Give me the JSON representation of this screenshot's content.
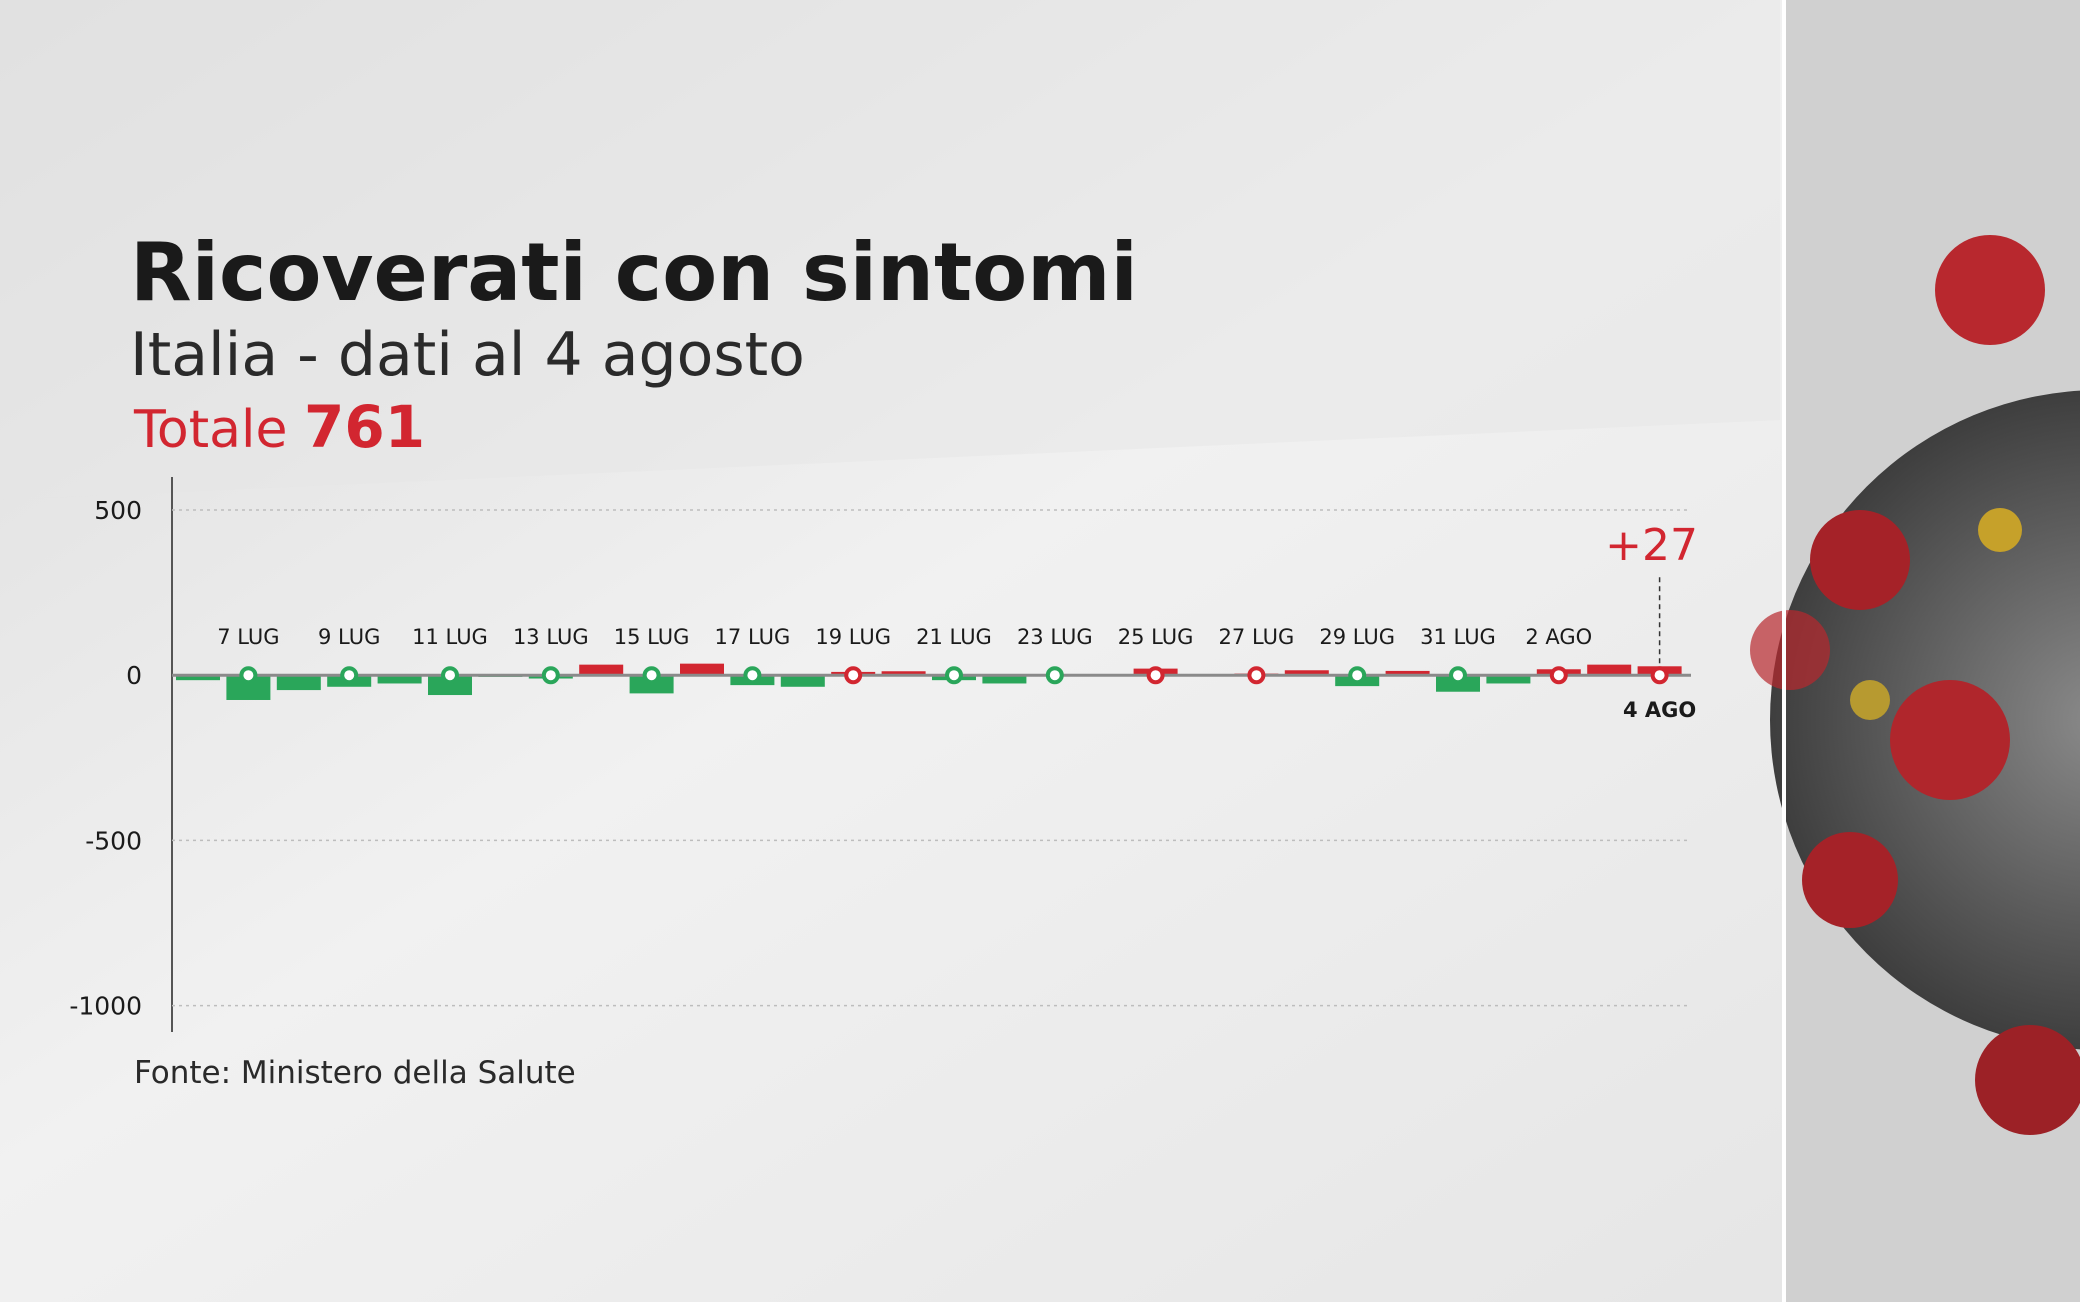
{
  "chart_data": {
    "type": "bar",
    "title": "Ricoverati con sintomi",
    "subtitle": "Italia - dati al 4 agosto",
    "total_label": "Totale",
    "total_value": 761,
    "source": "Fonte: Ministero della Salute",
    "categories": [
      null,
      "7 LUG",
      null,
      "9 LUG",
      null,
      "11 LUG",
      null,
      "13 LUG",
      null,
      "15 LUG",
      null,
      "17 LUG",
      null,
      "19 LUG",
      null,
      "21 LUG",
      null,
      "23 LUG",
      null,
      "25 LUG",
      null,
      "27 LUG",
      null,
      "29 LUG",
      null,
      "31 LUG",
      null,
      "2 AGO",
      null,
      "4 AGO"
    ],
    "values": [
      -15,
      -75,
      -45,
      -35,
      -25,
      -60,
      -5,
      -10,
      32,
      -55,
      35,
      -30,
      -35,
      10,
      12,
      -15,
      -25,
      -3,
      -1,
      20,
      3,
      5,
      15,
      -33,
      13,
      -50,
      -25,
      18,
      32,
      27
    ],
    "value_labels": [
      null,
      null,
      null,
      null,
      null,
      null,
      null,
      null,
      null,
      null,
      null,
      null,
      null,
      null,
      null,
      null,
      null,
      null,
      null,
      null,
      null,
      null,
      null,
      null,
      null,
      null,
      null,
      null,
      null,
      "+27"
    ],
    "colors": {
      "positive": "#d22630",
      "negative": "#2aa65a"
    },
    "ylim": [
      -1080,
      600
    ],
    "yticks": [
      500,
      0,
      -500,
      -1000
    ],
    "grid": true
  }
}
